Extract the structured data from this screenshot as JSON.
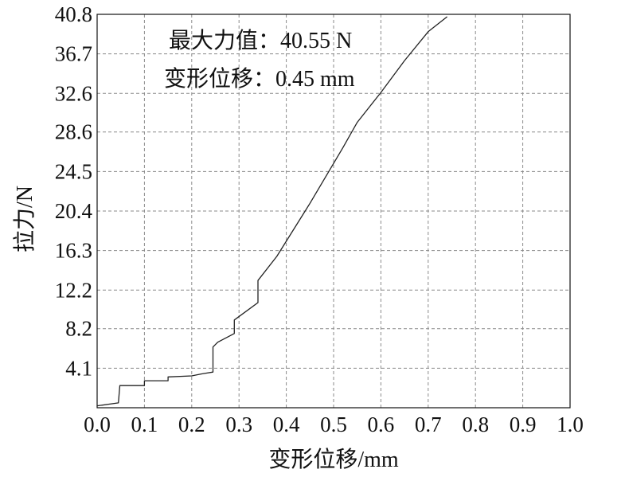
{
  "chart_data": {
    "type": "line",
    "xlabel": "变形位移/mm",
    "ylabel": "拉力/N",
    "xlim": [
      0,
      1.0
    ],
    "ylim": [
      0,
      40.8
    ],
    "x_ticks": [
      "0.0",
      "0.1",
      "0.2",
      "0.3",
      "0.4",
      "0.5",
      "0.6",
      "0.7",
      "0.8",
      "0.9",
      "1.0"
    ],
    "y_ticks": [
      "4.1",
      "8.2",
      "12.2",
      "16.3",
      "20.4",
      "24.5",
      "28.6",
      "32.6",
      "36.7",
      "40.8"
    ],
    "grid": true,
    "annotations": [
      "最大力值：40.55 N",
      "变形位移：0.45 mm"
    ],
    "series": [
      {
        "x": [
          0.0,
          0.045,
          0.048,
          0.1,
          0.1,
          0.15,
          0.15,
          0.2,
          0.22,
          0.245,
          0.245,
          0.255,
          0.29,
          0.29,
          0.34,
          0.34,
          0.38,
          0.45,
          0.52,
          0.55,
          0.6,
          0.65,
          0.7,
          0.74
        ],
        "y": [
          0.2,
          0.5,
          2.3,
          2.3,
          2.8,
          2.8,
          3.2,
          3.3,
          3.5,
          3.7,
          6.3,
          6.8,
          7.7,
          9.1,
          10.9,
          13.2,
          15.7,
          21.2,
          27.0,
          29.6,
          32.7,
          36.0,
          39.0,
          40.55
        ]
      }
    ]
  }
}
